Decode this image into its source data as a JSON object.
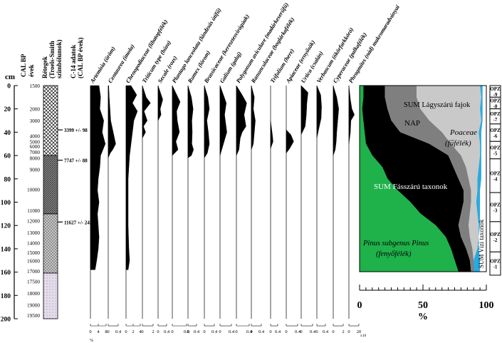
{
  "headers": {
    "depth_title": "cm",
    "cal_title_1": "CAL BP",
    "cal_title_2": "évek",
    "lithology_title_1": "Rétegek",
    "lithology_title_2": "(Troels-Smith",
    "lithology_title_3": "szimbólumok)",
    "c14_title_1": "C-14 adatok",
    "c14_title_2": "(CAL BP évek)"
  },
  "depth_ticks": [
    "0",
    "20",
    "40",
    "60",
    "80",
    "100",
    "120",
    "140",
    "160",
    "180",
    "200"
  ],
  "age_ticks": [
    {
      "label": "1500",
      "depth": 0
    },
    {
      "label": "2000",
      "depth": 20
    },
    {
      "label": "3000",
      "depth": 30
    },
    {
      "label": "4000",
      "depth": 43
    },
    {
      "label": "5000",
      "depth": 48
    },
    {
      "label": "6000",
      "depth": 52
    },
    {
      "label": "7000",
      "depth": 57
    },
    {
      "label": "8000",
      "depth": 62
    },
    {
      "label": "9000",
      "depth": 72
    },
    {
      "label": "10000",
      "depth": 89
    },
    {
      "label": "11000",
      "depth": 107
    },
    {
      "label": "12000",
      "depth": 116
    },
    {
      "label": "13000",
      "depth": 126
    },
    {
      "label": "14000",
      "depth": 135
    },
    {
      "label": "15000",
      "depth": 143
    },
    {
      "label": "16000",
      "depth": 150
    },
    {
      "label": "17000",
      "depth": 159
    },
    {
      "label": "17500",
      "depth": 168
    },
    {
      "label": "18000",
      "depth": 178
    },
    {
      "label": "19000",
      "depth": 188
    },
    {
      "label": "19500",
      "depth": 197
    }
  ],
  "c14_dates": [
    {
      "label": "3399 +/- 98",
      "depth": 38
    },
    {
      "label": "7747 +/- 88",
      "depth": 64
    },
    {
      "label": "11627 +/- 245",
      "depth": 117
    }
  ],
  "taxa": [
    {
      "name": "Artemisia (üröm)",
      "max": 8,
      "ticks": [
        "0",
        "4",
        "8"
      ]
    },
    {
      "name": "Centaurea (imola)",
      "max": 0.4,
      "ticks": [
        "0",
        "0.4"
      ]
    },
    {
      "name": "Chenopodiaceae (libatopfélék)",
      "max": 4,
      "ticks": [
        "0",
        "2",
        "4"
      ]
    },
    {
      "name": "Triticum type (búza)",
      "max": 2,
      "ticks": [
        "0",
        "2"
      ]
    },
    {
      "name": "Secale (rozs)",
      "max": 0.4,
      "ticks": [
        "0",
        "0.4"
      ]
    },
    {
      "name": "Plantago lanceolata (lándzsás útifű)",
      "max": 0.8,
      "ticks": [
        "0",
        "0.8"
      ]
    },
    {
      "name": "Rumex (lórom)",
      "max": 0.4,
      "ticks": [
        "0",
        "0.4"
      ]
    },
    {
      "name": "Brassicaceae (keresztesvirágúak)",
      "max": 0.4,
      "ticks": [
        "0",
        "0.4"
      ]
    },
    {
      "name": "Galium (galaj)",
      "max": 0.4,
      "ticks": [
        "0",
        "0.4"
      ]
    },
    {
      "name": "Polygonum aviculare (madárkeserűfű)",
      "max": 0.4,
      "ticks": [
        "0",
        "0.4"
      ]
    },
    {
      "name": "Ranunculaceae (boglárkafélék)",
      "max": 0.4,
      "ticks": [
        "0",
        "0.4"
      ]
    },
    {
      "name": "Trifolium (here)",
      "max": 0.4,
      "ticks": [
        "0",
        "0.4"
      ]
    },
    {
      "name": "Apiaceae (ernyősök)",
      "max": 0.4,
      "ticks": [
        "0",
        "0.4"
      ]
    },
    {
      "name": "Urtica (csalán)",
      "max": 0.4,
      "ticks": [
        "0",
        "0.4"
      ]
    },
    {
      "name": "Verbascum (ökörfarkkóró)",
      "max": 0.4,
      "ticks": [
        "0",
        "0.4"
      ]
    },
    {
      "name": "Cyperaceae (palkafélék)",
      "max": 2,
      "ticks": [
        "0",
        "2"
      ]
    },
    {
      "name": "Phragmites (nád) makromaradványai",
      "max": 20,
      "ticks": [
        "0",
        "20"
      ],
      "note": "x10"
    }
  ],
  "pct_symbol": "%",
  "summary": {
    "label_lagyszaru": "SUM Lágyszárú fajok",
    "label_nap": "NAP",
    "label_poaceae_1": "Poaceae",
    "label_poaceae_2": "(fűfélék)",
    "label_fasszaru": "SUM Fásszárú taxonok",
    "label_pinus_1": "Pinus subgenus Pinus",
    "label_pinus_2": "(fenyőfélék)",
    "label_vizi": "SUM Vízi taxonok",
    "axis_ticks": [
      "0",
      "50",
      "100"
    ],
    "axis_unit": "%",
    "colors": {
      "pinus": "#1fb14a",
      "arboreal": "#000000",
      "nap": "#7f7f7f",
      "poaceae": "#c9c9c9",
      "aquatic": "#2aa9e0"
    }
  },
  "zones": [
    "OPZ -9",
    "OPZ -8",
    "OPZ -7",
    "OPZ -6",
    "OPZ -5",
    "OPZ -4",
    "OPZ -3",
    "OPZ -2",
    "OPZ -1"
  ]
}
